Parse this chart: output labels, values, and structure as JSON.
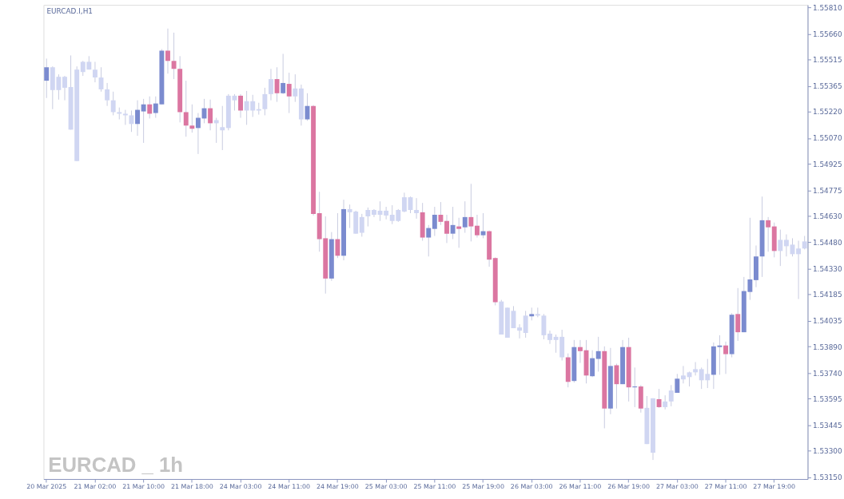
{
  "chart_data": {
    "type": "candlestick",
    "title": "EURCAD.I,H1",
    "annotations": [
      "EURCAD _ 1h"
    ],
    "categories": [
      "20 Mar 2025",
      null,
      null,
      null,
      null,
      null,
      null,
      null,
      "21 Mar 02:00",
      null,
      null,
      null,
      null,
      null,
      null,
      null,
      "21 Mar 10:00",
      null,
      null,
      null,
      null,
      null,
      null,
      null,
      "21 Mar 18:00",
      null,
      null,
      null,
      null,
      null,
      null,
      null,
      "24 Mar 03:00",
      null,
      null,
      null,
      null,
      null,
      null,
      null,
      "24 Mar 11:00",
      null,
      null,
      null,
      null,
      null,
      null,
      null,
      "24 Mar 19:00",
      null,
      null,
      null,
      null,
      null,
      null,
      null,
      "25 Mar 03:00",
      null,
      null,
      null,
      null,
      null,
      null,
      null,
      "25 Mar 11:00",
      null,
      null,
      null,
      null,
      null,
      null,
      null,
      "25 Mar 19:00",
      null,
      null,
      null,
      null,
      null,
      null,
      null,
      "26 Mar 03:00",
      null,
      null,
      null,
      null,
      null,
      null,
      null,
      "26 Mar 11:00",
      null,
      null,
      null,
      null,
      null,
      null,
      null,
      "26 Mar 19:00",
      null,
      null,
      null,
      null,
      null,
      null,
      null,
      "27 Mar 03:00",
      null,
      null,
      null,
      null,
      null,
      null,
      null,
      "27 Mar 11:00",
      null,
      null,
      null,
      null,
      null,
      null,
      null,
      "27 Mar 19:00",
      null,
      null,
      null,
      null,
      null
    ],
    "ohlc": [
      [
        1.55395,
        1.5552,
        1.55297,
        1.55471
      ],
      [
        1.55471,
        1.55476,
        1.55234,
        1.55342
      ],
      [
        1.55342,
        1.55431,
        1.55288,
        1.55417
      ],
      [
        1.55417,
        1.55422,
        1.55284,
        1.55355
      ],
      [
        1.55359,
        1.55538,
        1.55118,
        1.55118
      ],
      [
        1.5494,
        1.55476,
        1.5494,
        1.55458
      ],
      [
        1.55444,
        1.55507,
        1.55422,
        1.55502
      ],
      [
        1.55502,
        1.55534,
        1.55458,
        1.55458
      ],
      [
        1.55458,
        1.55502,
        1.55386,
        1.55413
      ],
      [
        1.55413,
        1.55471,
        1.55333,
        1.55346
      ],
      [
        1.55346,
        1.55382,
        1.55252,
        1.55284
      ],
      [
        1.55284,
        1.55333,
        1.55199,
        1.55217
      ],
      [
        1.55217,
        1.55243,
        1.55176,
        1.55208
      ],
      [
        1.55208,
        1.5523,
        1.55145,
        1.55199
      ],
      [
        1.55199,
        1.55226,
        1.55105,
        1.5515
      ],
      [
        1.5515,
        1.55284,
        1.55083,
        1.5523
      ],
      [
        1.55221,
        1.55292,
        1.55043,
        1.55261
      ],
      [
        1.55261,
        1.55306,
        1.55181,
        1.55208
      ],
      [
        1.55212,
        1.55306,
        1.55185,
        1.55266
      ],
      [
        1.55261,
        1.55574,
        1.55261,
        1.55565
      ],
      [
        1.55565,
        1.5569,
        1.55435,
        1.55507
      ],
      [
        1.55507,
        1.55667,
        1.55404,
        1.55462
      ],
      [
        1.55462,
        1.55534,
        1.55159,
        1.55217
      ],
      [
        1.55217,
        1.55395,
        1.55078,
        1.55141
      ],
      [
        1.55141,
        1.55261,
        1.55101,
        1.55123
      ],
      [
        1.55127,
        1.55212,
        1.5498,
        1.55185
      ],
      [
        1.55181,
        1.55292,
        1.55154,
        1.55239
      ],
      [
        1.55239,
        1.55288,
        1.55114,
        1.55154
      ],
      [
        1.55154,
        1.55185,
        1.55043,
        1.55172
      ],
      [
        1.55132,
        1.55252,
        1.55002,
        1.55114
      ],
      [
        1.55127,
        1.55319,
        1.55114,
        1.5531
      ],
      [
        1.5531,
        1.55319,
        1.55226,
        1.55284
      ],
      [
        1.5531,
        1.55319,
        1.55185,
        1.55226
      ],
      [
        1.55226,
        1.55337,
        1.55145,
        1.55279
      ],
      [
        1.55279,
        1.55315,
        1.5519,
        1.55226
      ],
      [
        1.55226,
        1.5527,
        1.55203,
        1.55234
      ],
      [
        1.55234,
        1.55355,
        1.55199,
        1.55319
      ],
      [
        1.55319,
        1.55462,
        1.55284,
        1.55404
      ],
      [
        1.55404,
        1.55471,
        1.55275,
        1.55324
      ],
      [
        1.55324,
        1.55547,
        1.55319,
        1.55382
      ],
      [
        1.55377,
        1.5544,
        1.55212,
        1.55306
      ],
      [
        1.55306,
        1.55431,
        1.55275,
        1.55351
      ],
      [
        1.55351,
        1.55373,
        1.55141,
        1.55176
      ],
      [
        1.55176,
        1.55324,
        1.55168,
        1.55252
      ],
      [
        1.55252,
        1.55257,
        1.54632,
        1.54641
      ],
      [
        1.54645,
        1.54766,
        1.54427,
        1.54498
      ],
      [
        1.54503,
        1.54627,
        1.5419,
        1.54275
      ],
      [
        1.54275,
        1.54538,
        1.54262,
        1.54498
      ],
      [
        1.54498,
        1.54645,
        1.54391,
        1.54404
      ],
      [
        1.54404,
        1.54721,
        1.54378,
        1.54668
      ],
      [
        1.54668,
        1.54694,
        1.54561,
        1.5465
      ],
      [
        1.54654,
        1.54659,
        1.54529,
        1.54529
      ],
      [
        1.54534,
        1.54641,
        1.54512,
        1.54623
      ],
      [
        1.54627,
        1.54677,
        1.5457,
        1.54663
      ],
      [
        1.54663,
        1.54668,
        1.54623,
        1.54636
      ],
      [
        1.54636,
        1.54712,
        1.54601,
        1.54659
      ],
      [
        1.54659,
        1.54681,
        1.5461,
        1.54632
      ],
      [
        1.54636,
        1.5469,
        1.54583,
        1.54601
      ],
      [
        1.54601,
        1.54668,
        1.54596,
        1.54663
      ],
      [
        1.54654,
        1.54761,
        1.5465,
        1.54735
      ],
      [
        1.54735,
        1.54739,
        1.54645,
        1.54663
      ],
      [
        1.54663,
        1.5473,
        1.54614,
        1.54645
      ],
      [
        1.5465,
        1.54703,
        1.54489,
        1.54507
      ],
      [
        1.54507,
        1.54578,
        1.544,
        1.54561
      ],
      [
        1.54556,
        1.54681,
        1.54516,
        1.54636
      ],
      [
        1.54636,
        1.54708,
        1.54578,
        1.54596
      ],
      [
        1.54601,
        1.54636,
        1.54476,
        1.54529
      ],
      [
        1.54529,
        1.54681,
        1.54498,
        1.54578
      ],
      [
        1.5457,
        1.54619,
        1.54449,
        1.54556
      ],
      [
        1.54565,
        1.54712,
        1.54534,
        1.54623
      ],
      [
        1.54623,
        1.54811,
        1.54485,
        1.5457
      ],
      [
        1.54574,
        1.54636,
        1.54507,
        1.5452
      ],
      [
        1.5452,
        1.54645,
        1.54503,
        1.54543
      ],
      [
        1.54543,
        1.54547,
        1.54342,
        1.54382
      ],
      [
        1.54391,
        1.54395,
        1.54123,
        1.54141
      ],
      [
        1.54145,
        1.54154,
        1.53958,
        1.53958
      ],
      [
        1.5411,
        1.5411,
        1.5394,
        1.5394
      ],
      [
        1.53994,
        1.54119,
        1.53994,
        1.54092
      ],
      [
        1.53998,
        1.54016,
        1.53936,
        1.5398
      ],
      [
        1.53967,
        1.54092,
        1.5394,
        1.54065
      ],
      [
        1.54061,
        1.5411,
        1.54038,
        1.54074
      ],
      [
        1.54074,
        1.5411,
        1.54056,
        1.54065
      ],
      [
        1.54065,
        1.54074,
        1.53931,
        1.53954
      ],
      [
        1.53963,
        1.5398,
        1.53905,
        1.53927
      ],
      [
        1.53945,
        1.53958,
        1.53855,
        1.53927
      ],
      [
        1.53945,
        1.53985,
        1.53811,
        1.53829
      ],
      [
        1.53829,
        1.53851,
        1.53659,
        1.5369
      ],
      [
        1.53695,
        1.53927,
        1.53686,
        1.53887
      ],
      [
        1.53887,
        1.53927,
        1.53797,
        1.53864
      ],
      [
        1.53869,
        1.53927,
        1.53681,
        1.53726
      ],
      [
        1.53722,
        1.53869,
        1.53717,
        1.53824
      ],
      [
        1.5382,
        1.53945,
        1.53748,
        1.53864
      ],
      [
        1.53864,
        1.53891,
        1.53427,
        1.53539
      ],
      [
        1.53539,
        1.53882,
        1.53507,
        1.5378
      ],
      [
        1.53784,
        1.53793,
        1.53539,
        1.53677
      ],
      [
        1.53677,
        1.53927,
        1.53677,
        1.53887
      ],
      [
        1.53887,
        1.5394,
        1.53579,
        1.53659
      ],
      [
        1.53659,
        1.53771,
        1.53547,
        1.53664
      ],
      [
        1.53664,
        1.53672,
        1.53516,
        1.53539
      ],
      [
        1.53543,
        1.5361,
        1.53338,
        1.53338
      ],
      [
        1.53597,
        1.53597,
        1.53248,
        1.53289
      ],
      [
        1.53592,
        1.5365,
        1.53543,
        1.53547
      ],
      [
        1.53547,
        1.53614,
        1.53534,
        1.53579
      ],
      [
        1.53579,
        1.53672,
        1.53552,
        1.53641
      ],
      [
        1.53628,
        1.53735,
        1.53628,
        1.53708
      ],
      [
        1.53704,
        1.5378,
        1.53681,
        1.53726
      ],
      [
        1.53717,
        1.53748,
        1.53664,
        1.53744
      ],
      [
        1.53744,
        1.53802,
        1.53726,
        1.53762
      ],
      [
        1.53762,
        1.53771,
        1.5365,
        1.53699
      ],
      [
        1.53699,
        1.5382,
        1.53655,
        1.53735
      ],
      [
        1.5373,
        1.53913,
        1.5365,
        1.53891
      ],
      [
        1.53887,
        1.53954,
        1.5373,
        1.53896
      ],
      [
        1.53896,
        1.53918,
        1.53735,
        1.53847
      ],
      [
        1.53847,
        1.54079,
        1.53829,
        1.5407
      ],
      [
        1.54074,
        1.54221,
        1.53922,
        1.53971
      ],
      [
        1.53971,
        1.54284,
        1.53971,
        1.54204
      ],
      [
        1.54199,
        1.54619,
        1.54154,
        1.5427
      ],
      [
        1.54266,
        1.54462,
        1.54226,
        1.544
      ],
      [
        1.544,
        1.54739,
        1.54284,
        1.54605
      ],
      [
        1.54605,
        1.54623,
        1.54427,
        1.54565
      ],
      [
        1.5457,
        1.54592,
        1.54395,
        1.54431
      ],
      [
        1.54431,
        1.54552,
        1.54346,
        1.54494
      ],
      [
        1.54494,
        1.54525,
        1.544,
        1.54458
      ],
      [
        1.54467,
        1.54503,
        1.544,
        1.54413
      ],
      [
        1.54413,
        1.54489,
        1.54159,
        1.54445
      ],
      [
        1.54445,
        1.54516,
        1.5444,
        1.54485
      ]
    ],
    "colors": [
      "#7b8bcf",
      "#d0d6f2",
      "#d0d6f2",
      "#d0d6f2",
      "#d0d6f2",
      "#d0d6f2",
      "#d0d6f2",
      "#d0d6f2",
      "#d0d6f2",
      "#d0d6f2",
      "#d0d6f2",
      "#d0d6f2",
      "#d0d6f2",
      "#d0d6f2",
      "#d0d6f2",
      "#7b8bcf",
      "#7b8bcf",
      "#db76a1",
      "#7b8bcf",
      "#7b8bcf",
      "#db76a1",
      "#db76a1",
      "#db76a1",
      "#db76a1",
      "#db76a1",
      "#7b8bcf",
      "#7b8bcf",
      "#db76a1",
      "#d0d6f2",
      "#d0d6f2",
      "#d0d6f2",
      "#d0d6f2",
      "#db76a1",
      "#d0d6f2",
      "#d0d6f2",
      "#d0d6f2",
      "#d0d6f2",
      "#d0d6f2",
      "#db76a1",
      "#7b8bcf",
      "#db76a1",
      "#d0d6f2",
      "#d0d6f2",
      "#7b8bcf",
      "#db76a1",
      "#db76a1",
      "#db76a1",
      "#7b8bcf",
      "#db76a1",
      "#7b8bcf",
      "#d0d6f2",
      "#d0d6f2",
      "#d0d6f2",
      "#d0d6f2",
      "#d0d6f2",
      "#d0d6f2",
      "#d0d6f2",
      "#d0d6f2",
      "#d0d6f2",
      "#d0d6f2",
      "#d0d6f2",
      "#d0d6f2",
      "#db76a1",
      "#7b8bcf",
      "#7b8bcf",
      "#db76a1",
      "#db76a1",
      "#7b8bcf",
      "#db76a1",
      "#7b8bcf",
      "#db76a1",
      "#db76a1",
      "#7b8bcf",
      "#db76a1",
      "#db76a1",
      "#d0d6f2",
      "#d0d6f2",
      "#d0d6f2",
      "#d0d6f2",
      "#d0d6f2",
      "#7b8bcf",
      "#d0d6f2",
      "#d0d6f2",
      "#d0d6f2",
      "#d0d6f2",
      "#d0d6f2",
      "#db76a1",
      "#7b8bcf",
      "#db76a1",
      "#db76a1",
      "#7b8bcf",
      "#7b8bcf",
      "#db76a1",
      "#7b8bcf",
      "#db76a1",
      "#7b8bcf",
      "#db76a1",
      "#7b8bcf",
      "#db76a1",
      "#d0d6f2",
      "#d0d6f2",
      "#db76a1",
      "#d0d6f2",
      "#d0d6f2",
      "#7b8bcf",
      "#d0d6f2",
      "#d0d6f2",
      "#d0d6f2",
      "#d0d6f2",
      "#d0d6f2",
      "#7b8bcf",
      "#7b8bcf",
      "#db76a1",
      "#7b8bcf",
      "#db76a1",
      "#7b8bcf",
      "#7b8bcf",
      "#7b8bcf",
      "#7b8bcf",
      "#db76a1",
      "#db76a1",
      "#d0d6f2",
      "#d0d6f2",
      "#d0d6f2",
      "#d0d6f2",
      "#d0d6f2"
    ],
    "ylim": [
      1.5314,
      1.55824
    ],
    "yticks": [
      {
        "value": 1.5581,
        "label": "1.55810"
      },
      {
        "value": 1.5566,
        "label": "1.55660"
      },
      {
        "value": 1.55515,
        "label": "1.55515"
      },
      {
        "value": 1.55365,
        "label": "1.55365"
      },
      {
        "value": 1.5522,
        "label": "1.55220"
      },
      {
        "value": 1.5507,
        "label": "1.55070"
      },
      {
        "value": 1.54925,
        "label": "1.54925"
      },
      {
        "value": 1.54775,
        "label": "1.54775"
      },
      {
        "value": 1.5463,
        "label": "1.54630"
      },
      {
        "value": 1.5448,
        "label": "1.54480"
      },
      {
        "value": 1.5433,
        "label": "1.54330"
      },
      {
        "value": 1.54185,
        "label": "1.54185"
      },
      {
        "value": 1.54035,
        "label": "1.54035"
      },
      {
        "value": 1.5389,
        "label": "1.53890"
      },
      {
        "value": 1.5374,
        "label": "1.53740"
      },
      {
        "value": 1.53595,
        "label": "1.53595"
      },
      {
        "value": 1.53445,
        "label": "1.53445"
      },
      {
        "value": 1.533,
        "label": "1.53300"
      },
      {
        "value": 1.5315,
        "label": "1.53150"
      }
    ]
  }
}
